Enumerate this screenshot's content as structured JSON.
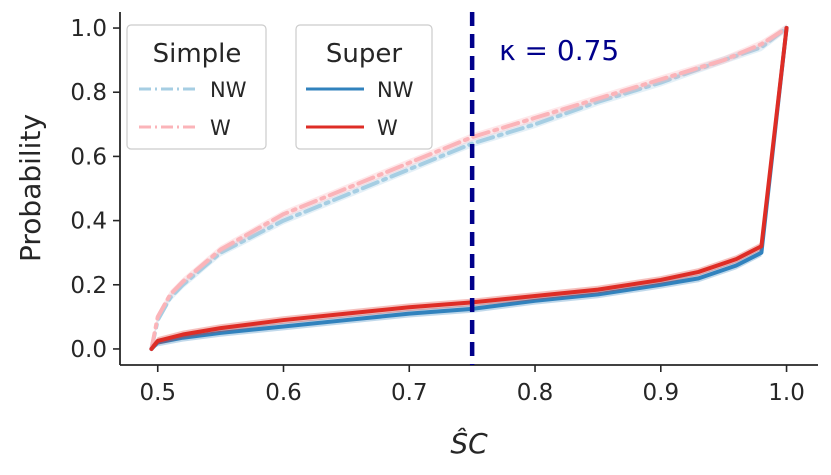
{
  "chart_data": {
    "type": "line",
    "xlabel": "ŜC",
    "ylabel": "Probability",
    "xlim": [
      0.47,
      1.025
    ],
    "ylim": [
      -0.05,
      1.05
    ],
    "xticks": [
      "0.5",
      "0.6",
      "0.7",
      "0.8",
      "0.9",
      "1.0"
    ],
    "yticks": [
      "0.0",
      "0.2",
      "0.4",
      "0.6",
      "0.8",
      "1.0"
    ],
    "grid": false,
    "legend_groups": [
      {
        "title": "Simple",
        "entries": [
          "NW",
          "W"
        ],
        "placement": "top-left"
      },
      {
        "title": "Super",
        "entries": [
          "NW",
          "W"
        ],
        "placement": "top-left"
      }
    ],
    "annotation": {
      "text": "κ = 0.75",
      "x": 0.75,
      "color": "#00008b"
    },
    "series": [
      {
        "group": "Simple",
        "name": "NW",
        "color": "#a6cee3",
        "style": "dashdot",
        "x": [
          0.495,
          0.5,
          0.51,
          0.52,
          0.55,
          0.6,
          0.65,
          0.7,
          0.75,
          0.8,
          0.85,
          0.9,
          0.95,
          0.98,
          1.0
        ],
        "y": [
          0.0,
          0.09,
          0.16,
          0.2,
          0.3,
          0.4,
          0.48,
          0.56,
          0.64,
          0.7,
          0.77,
          0.83,
          0.9,
          0.94,
          1.0
        ]
      },
      {
        "group": "Simple",
        "name": "W",
        "color": "#fbb4b9",
        "style": "dashdot",
        "x": [
          0.495,
          0.5,
          0.51,
          0.52,
          0.55,
          0.6,
          0.65,
          0.7,
          0.75,
          0.8,
          0.85,
          0.9,
          0.95,
          0.98,
          1.0
        ],
        "y": [
          0.0,
          0.1,
          0.17,
          0.21,
          0.31,
          0.42,
          0.5,
          0.58,
          0.66,
          0.72,
          0.78,
          0.84,
          0.9,
          0.95,
          1.0
        ]
      },
      {
        "group": "Super",
        "name": "NW",
        "color": "#3182bd",
        "style": "solid",
        "x": [
          0.495,
          0.5,
          0.52,
          0.55,
          0.6,
          0.65,
          0.7,
          0.75,
          0.8,
          0.85,
          0.9,
          0.93,
          0.96,
          0.98,
          1.0
        ],
        "y": [
          0.0,
          0.02,
          0.035,
          0.05,
          0.07,
          0.09,
          0.11,
          0.125,
          0.15,
          0.17,
          0.2,
          0.22,
          0.26,
          0.3,
          1.0
        ]
      },
      {
        "group": "Super",
        "name": "W",
        "color": "#de2d26",
        "style": "solid",
        "x": [
          0.495,
          0.5,
          0.52,
          0.55,
          0.6,
          0.65,
          0.7,
          0.75,
          0.8,
          0.85,
          0.9,
          0.93,
          0.96,
          0.98,
          1.0
        ],
        "y": [
          0.0,
          0.025,
          0.045,
          0.065,
          0.09,
          0.11,
          0.13,
          0.145,
          0.165,
          0.185,
          0.215,
          0.24,
          0.28,
          0.32,
          1.0
        ]
      }
    ]
  }
}
